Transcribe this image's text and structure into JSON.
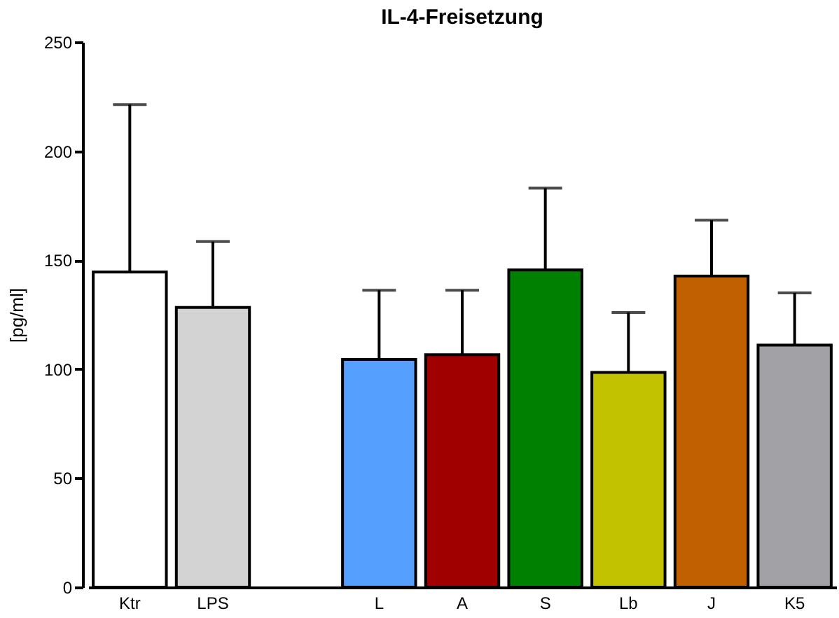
{
  "chart_data": {
    "type": "bar",
    "title": "IL-4-Freisetzung",
    "ylabel": "[pg/ml]",
    "categories": [
      "Ktr",
      "LPS",
      null,
      "L",
      "A",
      "S",
      "Lb",
      "J",
      "K5"
    ],
    "values": [
      144.5,
      128.3,
      null,
      104.4,
      106.6,
      145.5,
      98.5,
      142.7,
      111
    ],
    "colors": [
      "#ffffff",
      "#d3d3d3",
      "#ffffff",
      "#55a0ff",
      "#a00000",
      "#008000",
      "#c2c200",
      "#c06000",
      "#a2a1a6"
    ],
    "errors": [
      [
        144.5,
        221.3
      ],
      [
        128.3,
        158.5
      ],
      null,
      [
        104.4,
        136.2
      ],
      [
        106.6,
        136.2
      ],
      [
        145.5,
        183
      ],
      [
        98.5,
        126
      ],
      [
        142.7,
        168.3
      ],
      [
        111,
        135
      ]
    ],
    "ylim": [
      0,
      250
    ],
    "yticks": [
      0,
      50,
      100,
      150,
      200,
      250
    ],
    "grid": false
  }
}
